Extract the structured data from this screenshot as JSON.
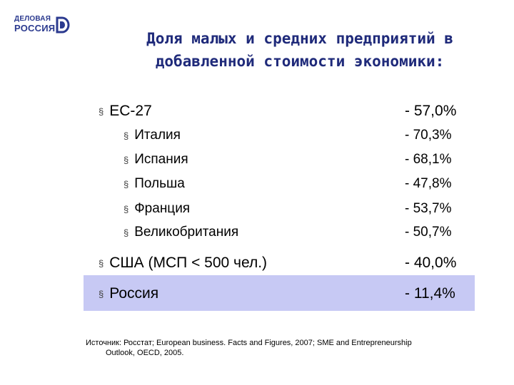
{
  "logo": {
    "line1": "ДЕЛОВАЯ",
    "line2": "РОССИЯ",
    "brand_color": "#2b3a8f"
  },
  "title": {
    "line1": "Доля малых и средних предприятий в",
    "line2": "добавленной стоимости экономики:"
  },
  "rows": [
    {
      "label": "ЕС-27",
      "value": "- 57,0%",
      "level": "main"
    },
    {
      "label": "Италия",
      "value": "- 70,3%",
      "level": "sub"
    },
    {
      "label": "Испания",
      "value": "- 68,1%",
      "level": "sub"
    },
    {
      "label": "Польша",
      "value": "- 47,8%",
      "level": "sub"
    },
    {
      "label": "Франция",
      "value": "- 53,7%",
      "level": "sub"
    },
    {
      "label": "Великобритания",
      "value": "- 50,7%",
      "level": "sub"
    },
    {
      "label": "США (МСП < 500 чел.)",
      "value": "- 40,0%",
      "level": "main"
    },
    {
      "label": "Россия",
      "value": "- 11,4%",
      "level": "main",
      "highlighted": true
    }
  ],
  "highlight_color": "#c7c9f4",
  "source": {
    "line1": "Источник: Росстат; European business. Facts and Figures, 2007; SME and Entrepreneurship",
    "line2": "Outlook, OECD, 2005."
  }
}
